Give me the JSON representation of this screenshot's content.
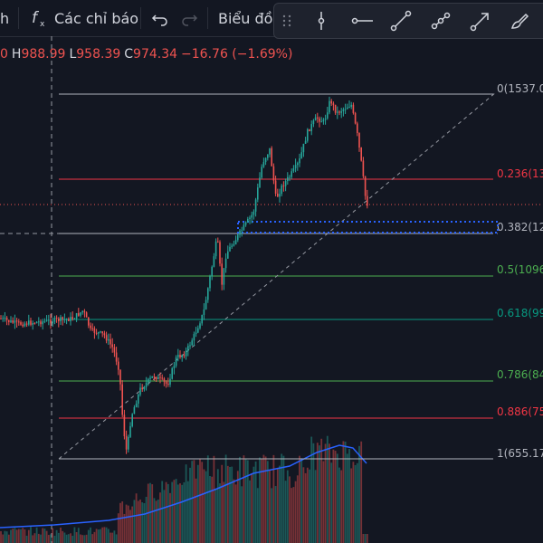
{
  "toolbar": {
    "cut_label": "h",
    "indicators_label": "Các chỉ báo",
    "chart_label": "Biểu đồ"
  },
  "ohlc": {
    "o_value": "0",
    "h_label": "H",
    "h_value": "988.99",
    "l_label": "L",
    "l_value": "958.39",
    "c_label": "C",
    "c_value": "974.34",
    "change": "−16.76 (−1.69%)"
  },
  "fib": {
    "l0": "0(1537.0",
    "l236": "0.236(13",
    "l382": "0.382(12",
    "l5": "0.5(1096",
    "l618": "0.618(99",
    "l786": "0.786(84",
    "l886": "0.886(75",
    "l1": "1(655.17"
  },
  "colors": {
    "background": "#131722",
    "up": "#26a69a",
    "down": "#ef5350",
    "fib_red": "#f23645",
    "fib_green": "#4caf50",
    "fib_teal": "#089981",
    "fib_gray": "#b2b5be",
    "volume_ma": "#2962ff"
  },
  "icons": [
    "fx-icon",
    "undo-icon",
    "redo-icon",
    "drag-handle-icon",
    "cursor-line-icon",
    "horizontal-line-icon",
    "trend-line-icon",
    "parallel-line-icon",
    "arrow-icon",
    "brush-icon"
  ]
}
